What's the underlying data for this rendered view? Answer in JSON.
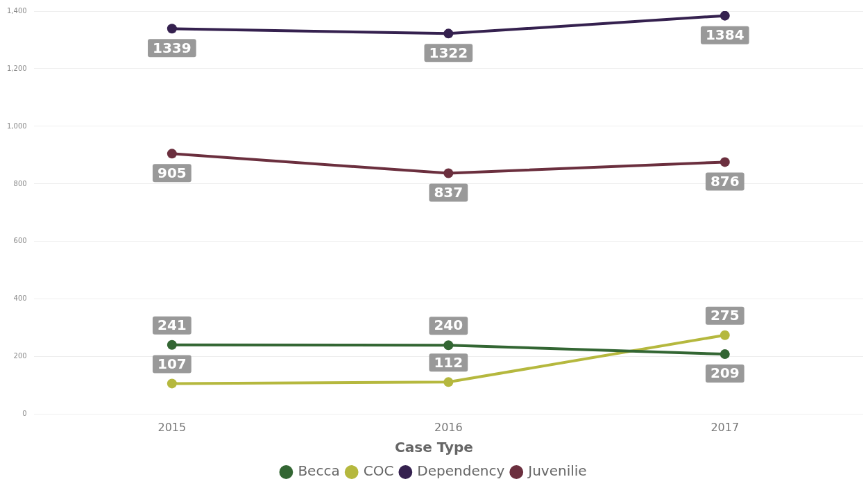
{
  "chart_data": {
    "type": "line",
    "categories": [
      "2015",
      "2016",
      "2017"
    ],
    "series": [
      {
        "name": "Becca",
        "color": "#336633",
        "values": [
          241,
          240,
          209
        ]
      },
      {
        "name": "COC",
        "color": "#b5b83e",
        "values": [
          107,
          112,
          275
        ]
      },
      {
        "name": "Dependency",
        "color": "#35214f",
        "values": [
          1339,
          1322,
          1384
        ]
      },
      {
        "name": "Juvenilie",
        "color": "#6b2f3e",
        "values": [
          905,
          837,
          876
        ]
      }
    ],
    "legend_title": "Case Type",
    "legend": "bottom",
    "ylim": [
      0,
      1400
    ],
    "yticks": [
      0,
      {
        "value": 200,
        "label": "200"
      },
      {
        "value": 400,
        "label": "400"
      },
      {
        "value": 600,
        "label": "600"
      },
      {
        "value": 800,
        "label": "800"
      },
      {
        "value": 1000,
        "label": "1,000"
      },
      {
        "value": 1200,
        "label": "1,200"
      },
      {
        "value": 1400,
        "label": "1,400"
      }
    ],
    "grid": "y",
    "marker": "circle",
    "line_style": "solid",
    "data_labels": true
  }
}
